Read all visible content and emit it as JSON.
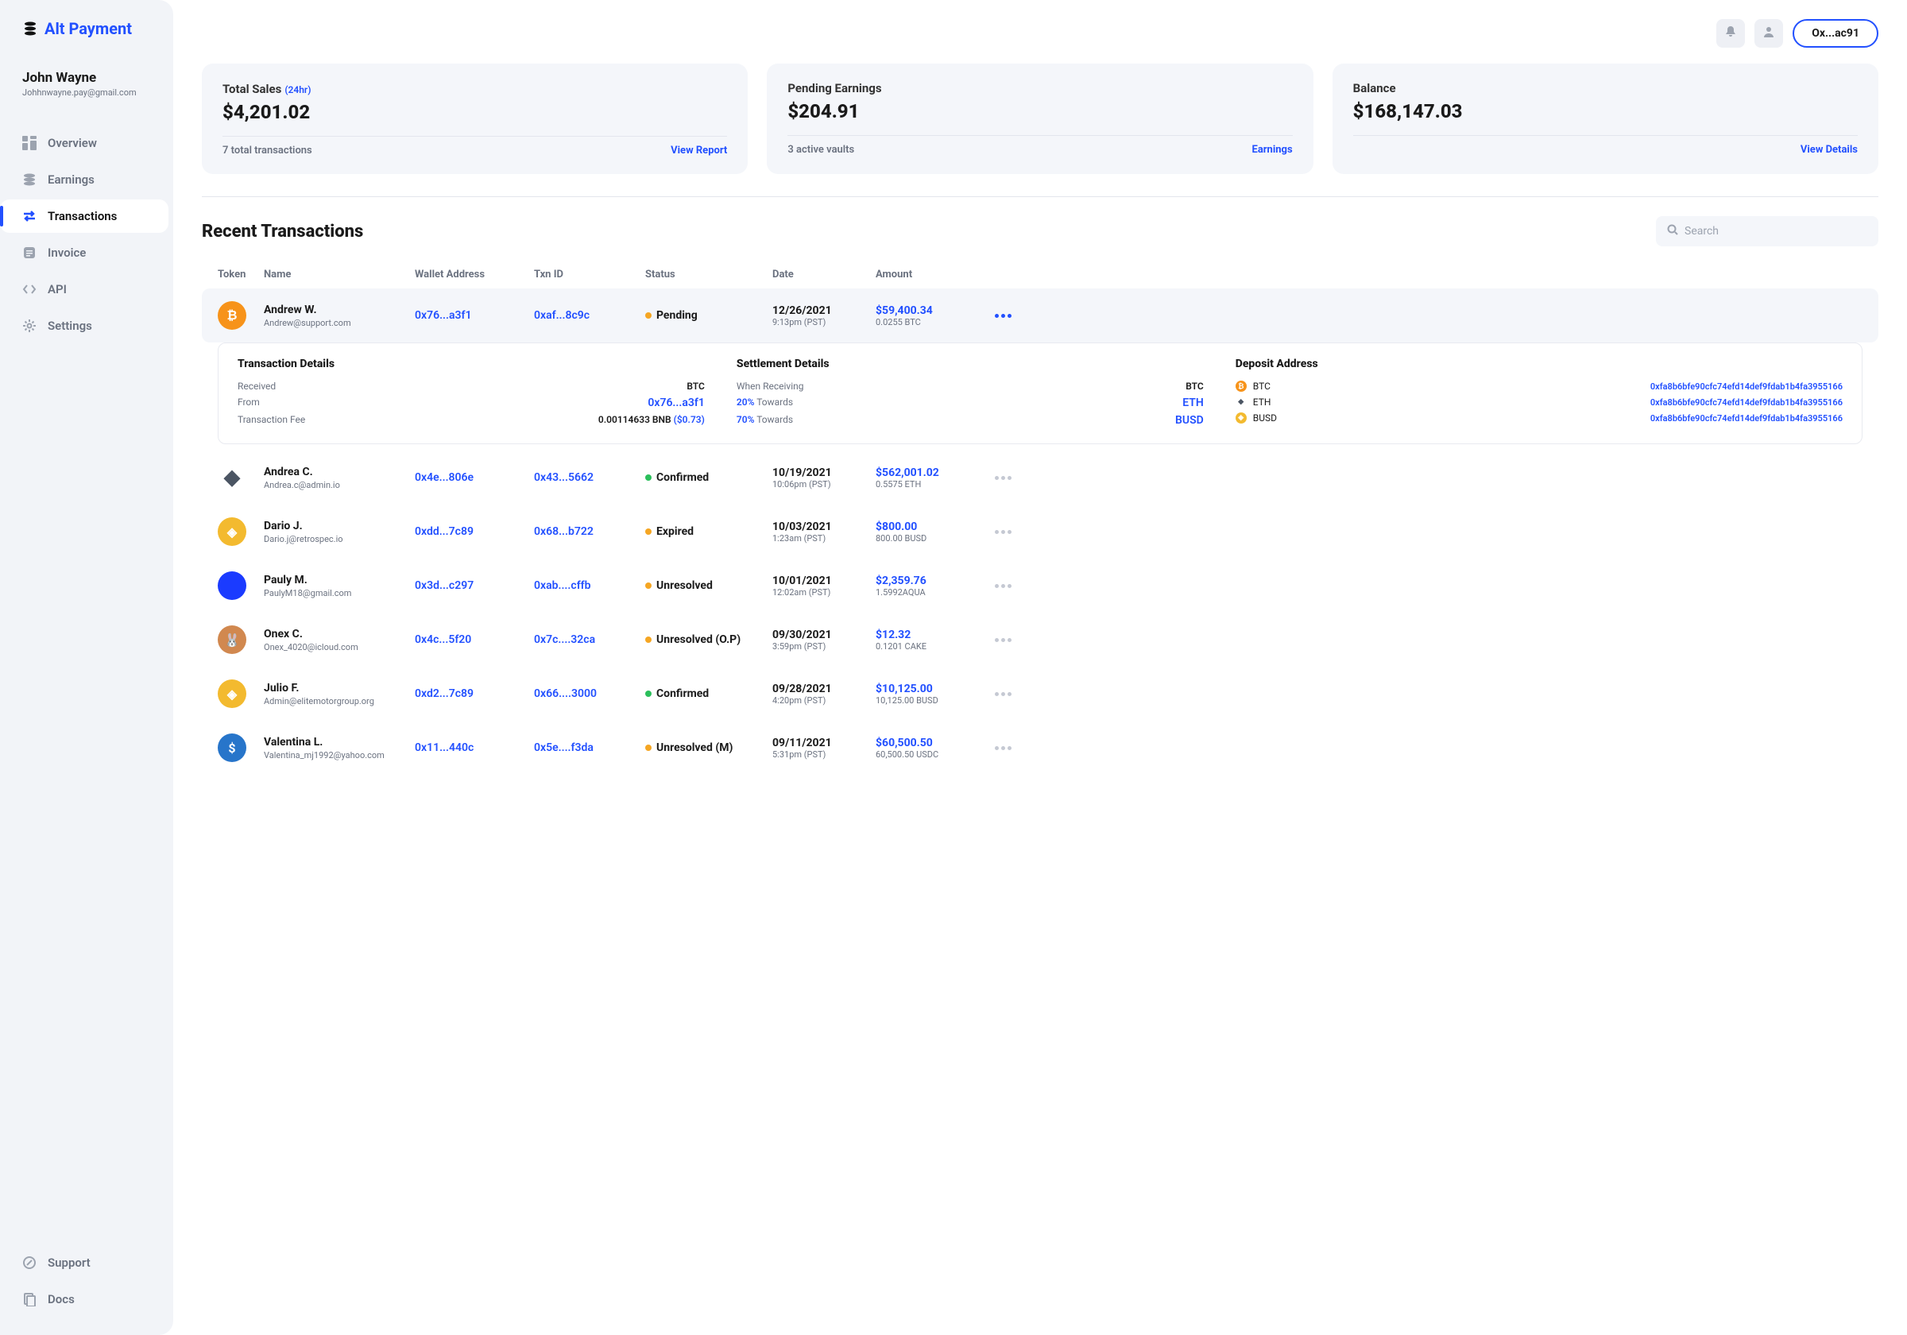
{
  "brand": {
    "name": "Alt Payment"
  },
  "user": {
    "name": "John Wayne",
    "email": "Johhnwayne.pay@gmail.com"
  },
  "nav": {
    "overview": "Overview",
    "earnings": "Earnings",
    "transactions": "Transactions",
    "invoice": "Invoice",
    "api": "API",
    "settings": "Settings",
    "support": "Support",
    "docs": "Docs"
  },
  "topbar": {
    "wallet": "Ox...ac91"
  },
  "stats": {
    "sales": {
      "title": "Total Sales",
      "sub": "(24hr)",
      "value": "$4,201.02",
      "footer": "7 total transactions",
      "link": "View Report"
    },
    "pending": {
      "title": "Pending Earnings",
      "value": "$204.91",
      "footer": "3 active vaults",
      "link": "Earnings"
    },
    "balance": {
      "title": "Balance",
      "value": "$168,147.03",
      "link": "View Details"
    }
  },
  "section": {
    "title": "Recent Transactions",
    "search_placeholder": "Search"
  },
  "th": {
    "token": "Token",
    "name": "Name",
    "wallet": "Wallet Address",
    "txn": "Txn ID",
    "status": "Status",
    "date": "Date",
    "amount": "Amount"
  },
  "colors": {
    "accent": "#2250ff",
    "pending": "#f5a623",
    "confirmed": "#2bbf5b",
    "expired": "#f5a623",
    "unresolved": "#f5a623",
    "btc": "#f7931a",
    "eth": "#627eea",
    "busd": "#f3ba2f",
    "aqua": "#1b3bff",
    "cake": "#d1884f",
    "usdc": "#2775ca"
  },
  "details": {
    "tx_title": "Transaction Details",
    "st_title": "Settlement Details",
    "dep_title": "Deposit Address",
    "received_l": "Received",
    "received_r": "BTC",
    "from_l": "From",
    "from_r": "0x76...a3f1",
    "fee_l": "Transaction Fee",
    "fee_r": "0.00114633 BNB",
    "fee_usd": "($0.73)",
    "wr_l": "When Receiving",
    "wr_r": "BTC",
    "twd1_l": "20%",
    "twd1_m": "Towards",
    "twd1_r": "ETH",
    "twd2_l": "70%",
    "twd2_m": "Towards",
    "twd2_r": "BUSD",
    "hash": "0xfa8b6bfe90cfc74efd14def9fdab1b4fa3955166",
    "dep_btc": "BTC",
    "dep_eth": "ETH",
    "dep_busd": "BUSD"
  },
  "rows": [
    {
      "name": "Andrew W.",
      "email": "Andrew@support.com",
      "wallet": "0x76...a3f1",
      "txn": "0xaf...8c9c",
      "status": "Pending",
      "date": "12/26/2021",
      "time": "9:13pm (PST)",
      "amount": "$59,400.34",
      "amount_sub": "0.0255 BTC",
      "token": "btc",
      "token_label": "₿"
    },
    {
      "name": "Andrea C.",
      "email": "Andrea.c@admin.io",
      "wallet": "0x4e...806e",
      "txn": "0x43...5662",
      "status": "Confirmed",
      "date": "10/19/2021",
      "time": "10:06pm (PST)",
      "amount": "$562,001.02",
      "amount_sub": "0.5575 ETH",
      "token": "eth",
      "token_label": "◆"
    },
    {
      "name": "Dario J.",
      "email": "Dario.j@retrospec.io",
      "wallet": "0xdd...7c89",
      "txn": "0x68...b722",
      "status": "Expired",
      "date": "10/03/2021",
      "time": "1:23am (PST)",
      "amount": "$800.00",
      "amount_sub": "800.00 BUSD",
      "token": "busd",
      "token_label": "◈"
    },
    {
      "name": "Pauly M.",
      "email": "PaulyM18@gmail.com",
      "wallet": "0x3d...c297",
      "txn": "0xab....cffb",
      "status": "Unresolved",
      "date": "10/01/2021",
      "time": "12:02am (PST)",
      "amount": "$2,359.76",
      "amount_sub": "1.5992AQUA",
      "token": "aqua",
      "token_label": ""
    },
    {
      "name": "Onex C.",
      "email": "Onex_4020@icloud.com",
      "wallet": "0x4c...5f20",
      "txn": "0x7c....32ca",
      "status": "Unresolved (O.P)",
      "date": "09/30/2021",
      "time": "3:59pm (PST)",
      "amount": "$12.32",
      "amount_sub": "0.1201 CAKE",
      "token": "cake",
      "token_label": "🐰"
    },
    {
      "name": "Julio F.",
      "email": "Admin@elitemotorgroup.org",
      "wallet": "0xd2...7c89",
      "txn": "0x66....3000",
      "status": "Confirmed",
      "date": "09/28/2021",
      "time": "4:20pm (PST)",
      "amount": "$10,125.00",
      "amount_sub": "10,125.00 BUSD",
      "token": "busd",
      "token_label": "◈"
    },
    {
      "name": "Valentina L.",
      "email": "Valentina_mj1992@yahoo.com",
      "wallet": "0x11...440c",
      "txn": "0x5e....f3da",
      "status": "Unresolved (M)",
      "date": "09/11/2021",
      "time": "5:31pm (PST)",
      "amount": "$60,500.50",
      "amount_sub": "60,500.50 USDC",
      "token": "usdc",
      "token_label": "$"
    }
  ]
}
